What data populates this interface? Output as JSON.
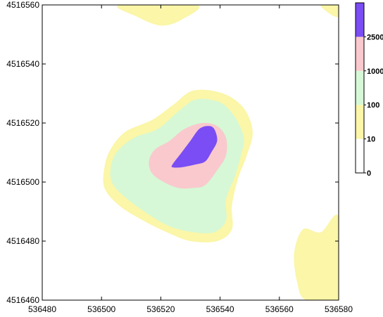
{
  "chart_data": {
    "type": "contour_map",
    "xlim": [
      536480,
      536580
    ],
    "ylim": [
      4516460,
      4516560
    ],
    "x_ticks": [
      "536480",
      "536500",
      "536520",
      "536540",
      "536560",
      "536580"
    ],
    "y_ticks": [
      "4516460",
      "4516480",
      "4516500",
      "4516520",
      "4516540",
      "4516560"
    ],
    "title": "",
    "xlabel": "",
    "ylabel": "",
    "grid": false,
    "legend_position": "right",
    "levels": [
      {
        "label": "0",
        "min": 0,
        "max": 10,
        "color": "#ffffff"
      },
      {
        "label": "10",
        "min": 10,
        "max": 100,
        "color": "#fbf6a8"
      },
      {
        "label": "100",
        "min": 100,
        "max": 1000,
        "color": "#d6f8d6"
      },
      {
        "label": "1000",
        "min": 1000,
        "max": 2500,
        "color": "#f9c9cd"
      },
      {
        "label": "2500",
        "min": 2500,
        "max": null,
        "color": "#7a4df5"
      }
    ],
    "regions": [
      {
        "level": "10",
        "polygon": [
          [
            536506,
            4516560
          ],
          [
            536512,
            4516556
          ],
          [
            536520,
            4516553
          ],
          [
            536527,
            4516555
          ],
          [
            536532,
            4516560
          ]
        ]
      },
      {
        "level": "10",
        "polygon": [
          [
            536574,
            4516560
          ],
          [
            536577,
            4516557
          ],
          [
            536580,
            4516556
          ],
          [
            536580,
            4516560
          ]
        ]
      },
      {
        "level": "10",
        "polygon": [
          [
            536569,
            4516460
          ],
          [
            536566,
            4516466
          ],
          [
            536565,
            4516476
          ],
          [
            536568,
            4516484
          ],
          [
            536574,
            4516483
          ],
          [
            536580,
            4516488
          ],
          [
            536580,
            4516460
          ]
        ]
      },
      {
        "level": "10",
        "polygon": [
          [
            536501,
            4516505
          ],
          [
            536503,
            4516511
          ],
          [
            536508,
            4516517
          ],
          [
            536517,
            4516521
          ],
          [
            536524,
            4516526
          ],
          [
            536531,
            4516531
          ],
          [
            536541,
            4516530
          ],
          [
            536548,
            4516525
          ],
          [
            536551,
            4516517
          ],
          [
            536549,
            4516509
          ],
          [
            536546,
            4516501
          ],
          [
            536544,
            4516492
          ],
          [
            536544,
            4516484
          ],
          [
            536539,
            4516480
          ],
          [
            536530,
            4516480
          ],
          [
            536522,
            4516483
          ],
          [
            536514,
            4516487
          ],
          [
            536506,
            4516492
          ],
          [
            536501,
            4516498
          ]
        ]
      },
      {
        "level": "100",
        "polygon": [
          [
            536503,
            4516504
          ],
          [
            536505,
            4516510
          ],
          [
            536511,
            4516515
          ],
          [
            536519,
            4516518
          ],
          [
            536526,
            4516524
          ],
          [
            536532,
            4516528
          ],
          [
            536540,
            4516527
          ],
          [
            536545,
            4516522
          ],
          [
            536548,
            4516515
          ],
          [
            536547,
            4516509
          ],
          [
            536545,
            4516502
          ],
          [
            536542,
            4516494
          ],
          [
            536542,
            4516487
          ],
          [
            536538,
            4516483
          ],
          [
            536531,
            4516483
          ],
          [
            536523,
            4516485
          ],
          [
            536516,
            4516489
          ],
          [
            536509,
            4516494
          ],
          [
            536504,
            4516499
          ]
        ]
      },
      {
        "level": "1000",
        "polygon": [
          [
            536516,
            4516507
          ],
          [
            536518,
            4516511
          ],
          [
            536523,
            4516514
          ],
          [
            536528,
            4516518
          ],
          [
            536534,
            4516520
          ],
          [
            536539,
            4516519
          ],
          [
            536542,
            4516515
          ],
          [
            536542,
            4516509
          ],
          [
            536539,
            4516504
          ],
          [
            536535,
            4516499
          ],
          [
            536531,
            4516498
          ],
          [
            536526,
            4516498
          ],
          [
            536521,
            4516500
          ],
          [
            536517,
            4516503
          ]
        ]
      },
      {
        "level": "2500",
        "polygon": [
          [
            536524,
            4516506
          ],
          [
            536527,
            4516510
          ],
          [
            536530,
            4516514
          ],
          [
            536533,
            4516518
          ],
          [
            536536,
            4516519
          ],
          [
            536538,
            4516518
          ],
          [
            536539,
            4516514
          ],
          [
            536537,
            4516510
          ],
          [
            536535,
            4516507
          ],
          [
            536532,
            4516506
          ],
          [
            536527,
            4516505
          ],
          [
            536524,
            4516505
          ]
        ]
      }
    ]
  }
}
